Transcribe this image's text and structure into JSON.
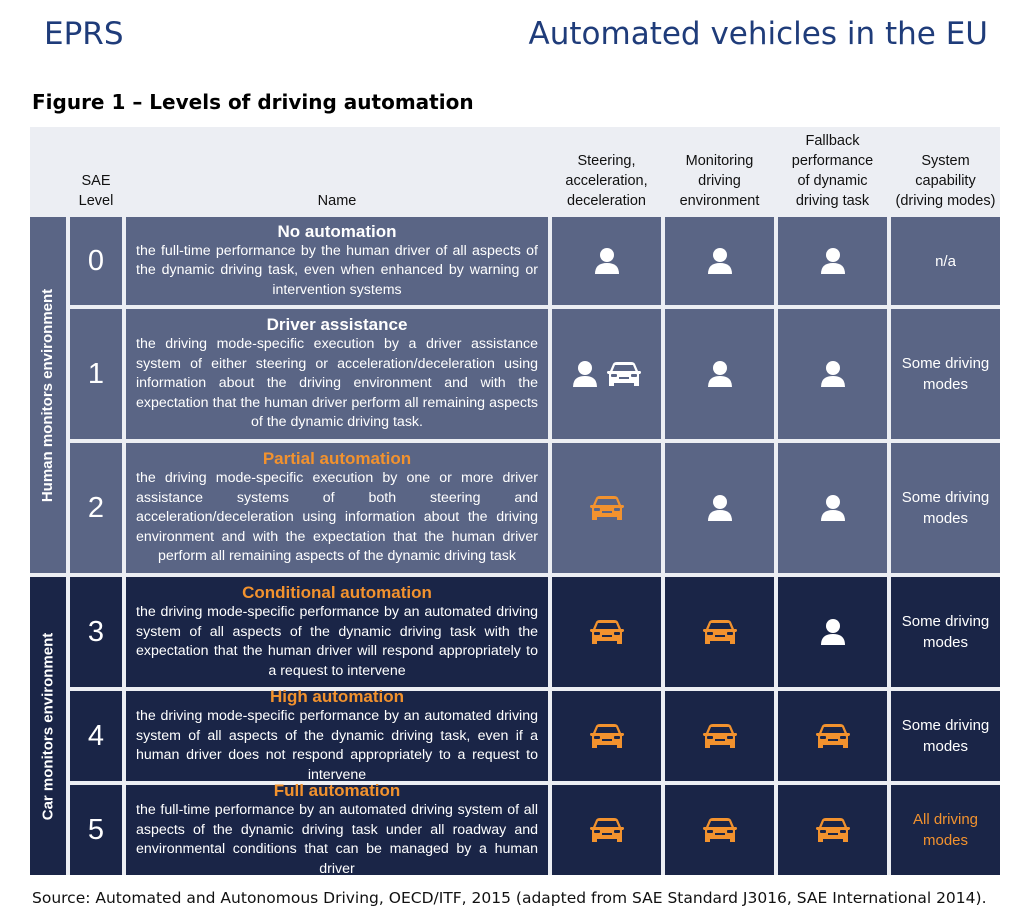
{
  "header": {
    "left": "EPRS",
    "right": "Automated vehicles in the EU"
  },
  "figure_title": "Figure 1 – Levels of driving automation",
  "columns": {
    "sae_level": "SAE\nLevel",
    "name": "Name",
    "steering": "Steering,\nacceleration,\ndeceleration",
    "monitoring": "Monitoring\ndriving\nenvironment",
    "fallback": "Fallback\nperformance\nof dynamic\ndriving task",
    "capability": "System\ncapability\n(driving modes)"
  },
  "groups": [
    {
      "label": "Human monitors environment",
      "color": "#5a6585"
    },
    {
      "label": "Car monitors environment",
      "color": "#1a2547"
    }
  ],
  "colors": {
    "human_bg": "#5a6585",
    "car_bg": "#1a2547",
    "accent": "#f2922e",
    "white": "#ffffff"
  },
  "rows": [
    {
      "level": "0",
      "title": "No automation",
      "title_accent": false,
      "desc": "the full-time performance by the human driver of all aspects of the dynamic driving task, even when enhanced by warning or intervention systems",
      "steering": [
        "person"
      ],
      "monitoring": [
        "person"
      ],
      "fallback": [
        "person"
      ],
      "capability": "n/a",
      "capability_accent": false,
      "group": 0
    },
    {
      "level": "1",
      "title": "Driver assistance",
      "title_accent": false,
      "desc": "the driving mode-specific execution by a driver assistance system of either steering or acceleration/deceleration using information about the driving environment and with the expectation that the human driver perform all remaining aspects of the dynamic driving task.",
      "steering": [
        "person",
        "car-white"
      ],
      "monitoring": [
        "person"
      ],
      "fallback": [
        "person"
      ],
      "capability": "Some driving modes",
      "capability_accent": false,
      "group": 0
    },
    {
      "level": "2",
      "title": "Partial automation",
      "title_accent": true,
      "desc": "the driving mode-specific execution by one or more driver assistance systems of both steering and acceleration/deceleration using information about the driving environment and with the expectation that the human driver perform all remaining aspects of the dynamic driving task",
      "steering": [
        "car"
      ],
      "monitoring": [
        "person"
      ],
      "fallback": [
        "person"
      ],
      "capability": "Some driving modes",
      "capability_accent": false,
      "group": 0
    },
    {
      "level": "3",
      "title": "Conditional automation",
      "title_accent": true,
      "desc": "the driving mode-specific performance by an automated driving system of all aspects of the dynamic driving task with the expectation that the human driver will respond appropriately to a request to intervene",
      "steering": [
        "car"
      ],
      "monitoring": [
        "car"
      ],
      "fallback": [
        "person"
      ],
      "capability": "Some driving modes",
      "capability_accent": false,
      "group": 1
    },
    {
      "level": "4",
      "title": "High automation",
      "title_accent": true,
      "desc": "the driving mode-specific performance by an automated driving system of all aspects of the dynamic driving task, even if a human driver does not respond appropriately to a request to intervene",
      "steering": [
        "car"
      ],
      "monitoring": [
        "car"
      ],
      "fallback": [
        "car"
      ],
      "capability": "Some driving modes",
      "capability_accent": false,
      "group": 1
    },
    {
      "level": "5",
      "title": "Full automation",
      "title_accent": true,
      "desc": "the full-time performance by an automated driving system of all aspects of the dynamic driving task under all roadway and environmental conditions that can be managed by a human driver",
      "steering": [
        "car"
      ],
      "monitoring": [
        "car"
      ],
      "fallback": [
        "car"
      ],
      "capability": "All driving modes",
      "capability_accent": true,
      "group": 1
    }
  ],
  "source": "Source: Automated and Autonomous Driving, OECD/ITF, 2015 (adapted from SAE Standard J3016, SAE International 2014)."
}
